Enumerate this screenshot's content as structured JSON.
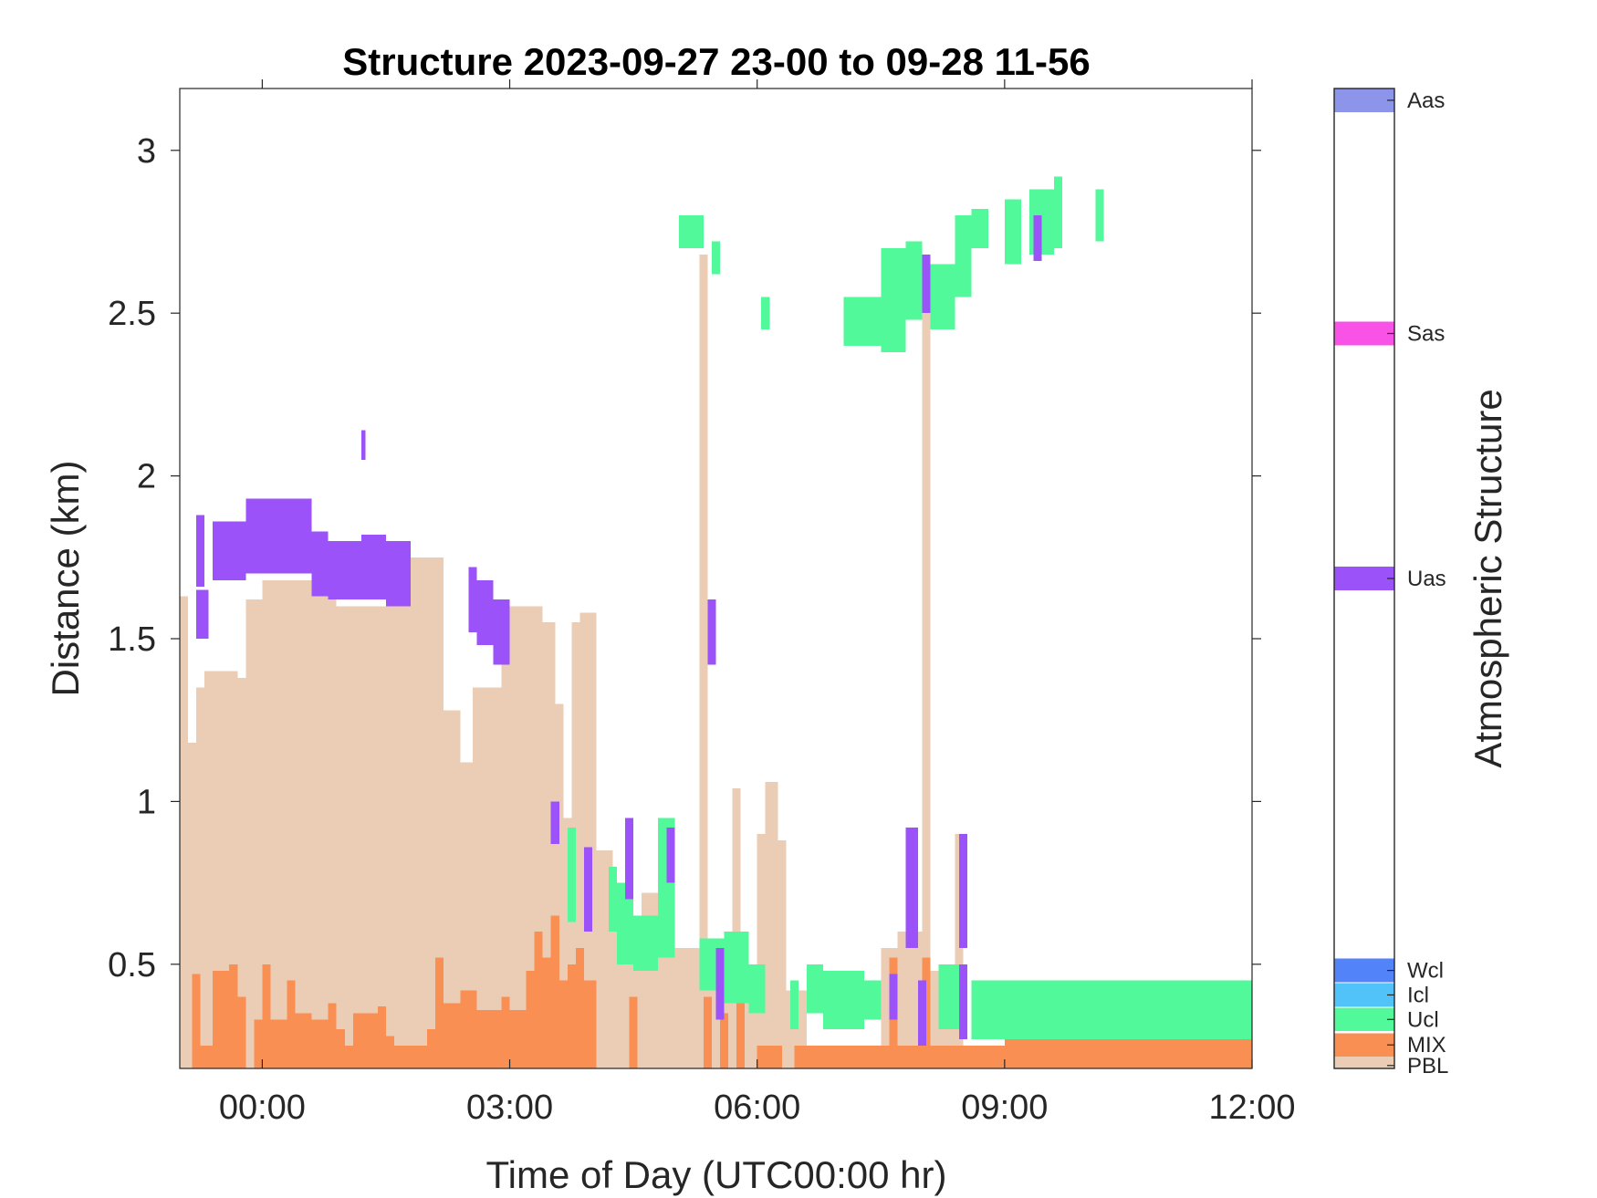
{
  "chart_data": {
    "type": "heatmap",
    "title": "Structure 2023-09-27 23-00 to 09-28 11-56",
    "xlabel": "Time of Day (UTC00:00 hr)",
    "ylabel": "Distance (km)",
    "xlim": [
      -1.0,
      12.0
    ],
    "ylim": [
      0.18,
      3.19
    ],
    "xticks": [
      {
        "value": 0,
        "label": "00:00"
      },
      {
        "value": 3,
        "label": "03:00"
      },
      {
        "value": 6,
        "label": "06:00"
      },
      {
        "value": 9,
        "label": "09:00"
      },
      {
        "value": 12,
        "label": "12:00"
      }
    ],
    "yticks": [
      {
        "value": 0.5,
        "label": "0.5"
      },
      {
        "value": 1.0,
        "label": "1"
      },
      {
        "value": 1.5,
        "label": "1.5"
      },
      {
        "value": 2.0,
        "label": "2"
      },
      {
        "value": 2.5,
        "label": "2.5"
      },
      {
        "value": 3.0,
        "label": "3"
      }
    ],
    "colorbar": {
      "label": "Atmospheric Structure",
      "categories": [
        {
          "name": "PBL",
          "color": "#EBCDB5"
        },
        {
          "name": "MIX",
          "color": "#F98F52"
        },
        {
          "name": "Ucl",
          "color": "#52F99A"
        },
        {
          "name": "Icl",
          "color": "#52C3F9"
        },
        {
          "name": "Wcl",
          "color": "#5283F9"
        },
        {
          "name": "Uas",
          "color": "#9B52F9"
        },
        {
          "name": "Sas",
          "color": "#F952E6"
        },
        {
          "name": "Aas",
          "color": "#8C95EA"
        }
      ]
    },
    "series": [
      {
        "class": "PBL",
        "segments": [
          [
            -1.0,
            -0.9,
            0.18,
            1.63
          ],
          [
            -0.9,
            -0.8,
            0.18,
            1.18
          ],
          [
            -0.8,
            -0.7,
            0.18,
            1.35
          ],
          [
            -0.7,
            -0.3,
            0.18,
            1.4
          ],
          [
            -0.3,
            -0.2,
            0.18,
            1.38
          ],
          [
            -0.2,
            0.0,
            0.18,
            1.62
          ],
          [
            0.0,
            0.6,
            0.18,
            1.68
          ],
          [
            0.6,
            0.9,
            0.18,
            1.63
          ],
          [
            0.9,
            1.8,
            0.18,
            1.6
          ],
          [
            1.8,
            2.2,
            0.18,
            1.75
          ],
          [
            2.2,
            2.4,
            0.18,
            1.28
          ],
          [
            2.4,
            2.55,
            0.18,
            1.12
          ],
          [
            2.55,
            2.9,
            0.18,
            1.35
          ],
          [
            2.9,
            3.4,
            0.18,
            1.6
          ],
          [
            3.4,
            3.55,
            0.18,
            1.55
          ],
          [
            3.55,
            3.65,
            0.18,
            1.3
          ],
          [
            3.65,
            3.75,
            0.18,
            0.95
          ],
          [
            3.75,
            3.85,
            0.18,
            1.55
          ],
          [
            3.85,
            4.05,
            0.18,
            1.58
          ],
          [
            4.05,
            4.25,
            0.18,
            0.85
          ],
          [
            4.25,
            4.6,
            0.18,
            0.65
          ],
          [
            4.6,
            5.0,
            0.18,
            0.72
          ],
          [
            5.0,
            5.3,
            0.18,
            0.55
          ],
          [
            5.3,
            5.4,
            0.18,
            2.68
          ],
          [
            5.4,
            5.7,
            0.18,
            0.55
          ],
          [
            5.7,
            5.8,
            0.18,
            1.04
          ],
          [
            5.8,
            6.0,
            0.18,
            0.5
          ],
          [
            6.0,
            6.1,
            0.18,
            0.9
          ],
          [
            6.1,
            6.25,
            0.18,
            1.06
          ],
          [
            6.25,
            6.35,
            0.18,
            0.88
          ],
          [
            6.35,
            6.6,
            0.18,
            0.42
          ],
          [
            7.5,
            7.7,
            0.18,
            0.55
          ],
          [
            7.7,
            8.0,
            0.18,
            0.6
          ],
          [
            8.0,
            8.1,
            0.18,
            2.55
          ],
          [
            8.1,
            8.4,
            0.18,
            0.48
          ],
          [
            8.4,
            8.5,
            0.18,
            0.9
          ]
        ]
      },
      {
        "class": "MIX",
        "segments": [
          [
            -0.85,
            -0.75,
            0.18,
            0.47
          ],
          [
            -0.75,
            -0.6,
            0.18,
            0.25
          ],
          [
            -0.6,
            -0.4,
            0.18,
            0.48
          ],
          [
            -0.4,
            -0.3,
            0.18,
            0.5
          ],
          [
            -0.3,
            -0.2,
            0.18,
            0.4
          ],
          [
            -0.1,
            0.0,
            0.18,
            0.33
          ],
          [
            0.0,
            0.1,
            0.18,
            0.5
          ],
          [
            0.1,
            0.3,
            0.18,
            0.33
          ],
          [
            0.3,
            0.4,
            0.18,
            0.45
          ],
          [
            0.4,
            0.6,
            0.18,
            0.35
          ],
          [
            0.6,
            0.8,
            0.18,
            0.33
          ],
          [
            0.8,
            0.9,
            0.18,
            0.38
          ],
          [
            0.9,
            1.0,
            0.18,
            0.3
          ],
          [
            1.0,
            1.1,
            0.18,
            0.25
          ],
          [
            1.1,
            1.2,
            0.18,
            0.35
          ],
          [
            1.2,
            1.4,
            0.18,
            0.35
          ],
          [
            1.4,
            1.5,
            0.18,
            0.37
          ],
          [
            1.5,
            1.6,
            0.18,
            0.28
          ],
          [
            1.6,
            1.8,
            0.18,
            0.25
          ],
          [
            1.8,
            2.0,
            0.18,
            0.25
          ],
          [
            2.0,
            2.1,
            0.18,
            0.3
          ],
          [
            2.1,
            2.2,
            0.18,
            0.52
          ],
          [
            2.2,
            2.4,
            0.18,
            0.38
          ],
          [
            2.4,
            2.6,
            0.18,
            0.42
          ],
          [
            2.6,
            2.9,
            0.18,
            0.36
          ],
          [
            2.9,
            3.0,
            0.18,
            0.4
          ],
          [
            3.0,
            3.2,
            0.18,
            0.36
          ],
          [
            3.2,
            3.3,
            0.18,
            0.48
          ],
          [
            3.3,
            3.4,
            0.18,
            0.6
          ],
          [
            3.4,
            3.5,
            0.18,
            0.52
          ],
          [
            3.5,
            3.6,
            0.18,
            0.65
          ],
          [
            3.6,
            3.7,
            0.18,
            0.45
          ],
          [
            3.7,
            3.8,
            0.18,
            0.5
          ],
          [
            3.8,
            3.9,
            0.18,
            0.55
          ],
          [
            3.9,
            4.05,
            0.18,
            0.45
          ],
          [
            4.45,
            4.55,
            0.18,
            0.4
          ],
          [
            5.35,
            5.45,
            0.18,
            0.4
          ],
          [
            5.55,
            5.65,
            0.18,
            0.35
          ],
          [
            5.75,
            5.85,
            0.18,
            0.38
          ],
          [
            6.0,
            6.3,
            0.18,
            0.25
          ],
          [
            6.45,
            12.0,
            0.18,
            0.25
          ],
          [
            7.6,
            7.7,
            0.18,
            0.52
          ],
          [
            8.0,
            8.1,
            0.18,
            0.52
          ],
          [
            8.4,
            8.6,
            0.18,
            0.25
          ],
          [
            9.0,
            12.0,
            0.18,
            0.28
          ]
        ]
      },
      {
        "class": "Ucl",
        "segments": [
          [
            3.7,
            3.8,
            0.63,
            0.92
          ],
          [
            4.2,
            4.3,
            0.6,
            0.8
          ],
          [
            4.3,
            4.5,
            0.5,
            0.75
          ],
          [
            4.5,
            4.8,
            0.48,
            0.65
          ],
          [
            4.8,
            5.0,
            0.52,
            0.95
          ],
          [
            5.3,
            5.6,
            0.42,
            0.58
          ],
          [
            5.6,
            5.9,
            0.38,
            0.6
          ],
          [
            5.9,
            6.1,
            0.35,
            0.5
          ],
          [
            6.4,
            6.5,
            0.3,
            0.45
          ],
          [
            6.6,
            6.8,
            0.35,
            0.5
          ],
          [
            6.8,
            7.3,
            0.3,
            0.48
          ],
          [
            7.3,
            7.5,
            0.33,
            0.45
          ],
          [
            8.2,
            8.5,
            0.3,
            0.5
          ],
          [
            8.6,
            12.0,
            0.27,
            0.45
          ],
          [
            5.05,
            5.35,
            2.7,
            2.8
          ],
          [
            5.45,
            5.55,
            2.62,
            2.72
          ],
          [
            6.05,
            6.15,
            2.45,
            2.55
          ],
          [
            7.05,
            7.5,
            2.4,
            2.55
          ],
          [
            7.5,
            7.8,
            2.38,
            2.7
          ],
          [
            7.8,
            8.0,
            2.48,
            2.72
          ],
          [
            8.1,
            8.4,
            2.45,
            2.65
          ],
          [
            8.4,
            8.6,
            2.55,
            2.8
          ],
          [
            8.6,
            8.8,
            2.7,
            2.82
          ],
          [
            9.0,
            9.2,
            2.65,
            2.85
          ],
          [
            9.3,
            9.6,
            2.68,
            2.88
          ],
          [
            9.6,
            9.7,
            2.7,
            2.92
          ],
          [
            10.1,
            10.2,
            2.72,
            2.88
          ]
        ]
      },
      {
        "class": "Uas",
        "segments": [
          [
            -0.8,
            -0.7,
            1.66,
            1.88
          ],
          [
            -0.8,
            -0.65,
            1.5,
            1.65
          ],
          [
            -0.6,
            -0.2,
            1.68,
            1.86
          ],
          [
            -0.2,
            0.2,
            1.7,
            1.93
          ],
          [
            0.2,
            0.6,
            1.7,
            1.93
          ],
          [
            0.6,
            0.8,
            1.63,
            1.83
          ],
          [
            0.8,
            1.2,
            1.62,
            1.8
          ],
          [
            1.2,
            1.5,
            1.62,
            1.82
          ],
          [
            1.5,
            1.8,
            1.6,
            1.8
          ],
          [
            1.2,
            1.25,
            2.05,
            2.14
          ],
          [
            2.5,
            2.6,
            1.52,
            1.72
          ],
          [
            2.6,
            2.8,
            1.48,
            1.68
          ],
          [
            2.8,
            3.0,
            1.42,
            1.62
          ],
          [
            3.5,
            3.6,
            0.87,
            1.0
          ],
          [
            3.9,
            4.0,
            0.6,
            0.86
          ],
          [
            4.4,
            4.5,
            0.7,
            0.95
          ],
          [
            4.9,
            5.0,
            0.75,
            0.92
          ],
          [
            5.4,
            5.5,
            1.42,
            1.62
          ],
          [
            5.5,
            5.6,
            0.33,
            0.55
          ],
          [
            7.6,
            7.7,
            0.33,
            0.47
          ],
          [
            7.8,
            7.95,
            0.55,
            0.92
          ],
          [
            7.95,
            8.05,
            0.25,
            0.45
          ],
          [
            8.0,
            8.1,
            2.5,
            2.68
          ],
          [
            8.45,
            8.55,
            0.55,
            0.9
          ],
          [
            8.45,
            8.55,
            0.27,
            0.5
          ],
          [
            9.35,
            9.45,
            2.66,
            2.8
          ]
        ]
      }
    ]
  }
}
